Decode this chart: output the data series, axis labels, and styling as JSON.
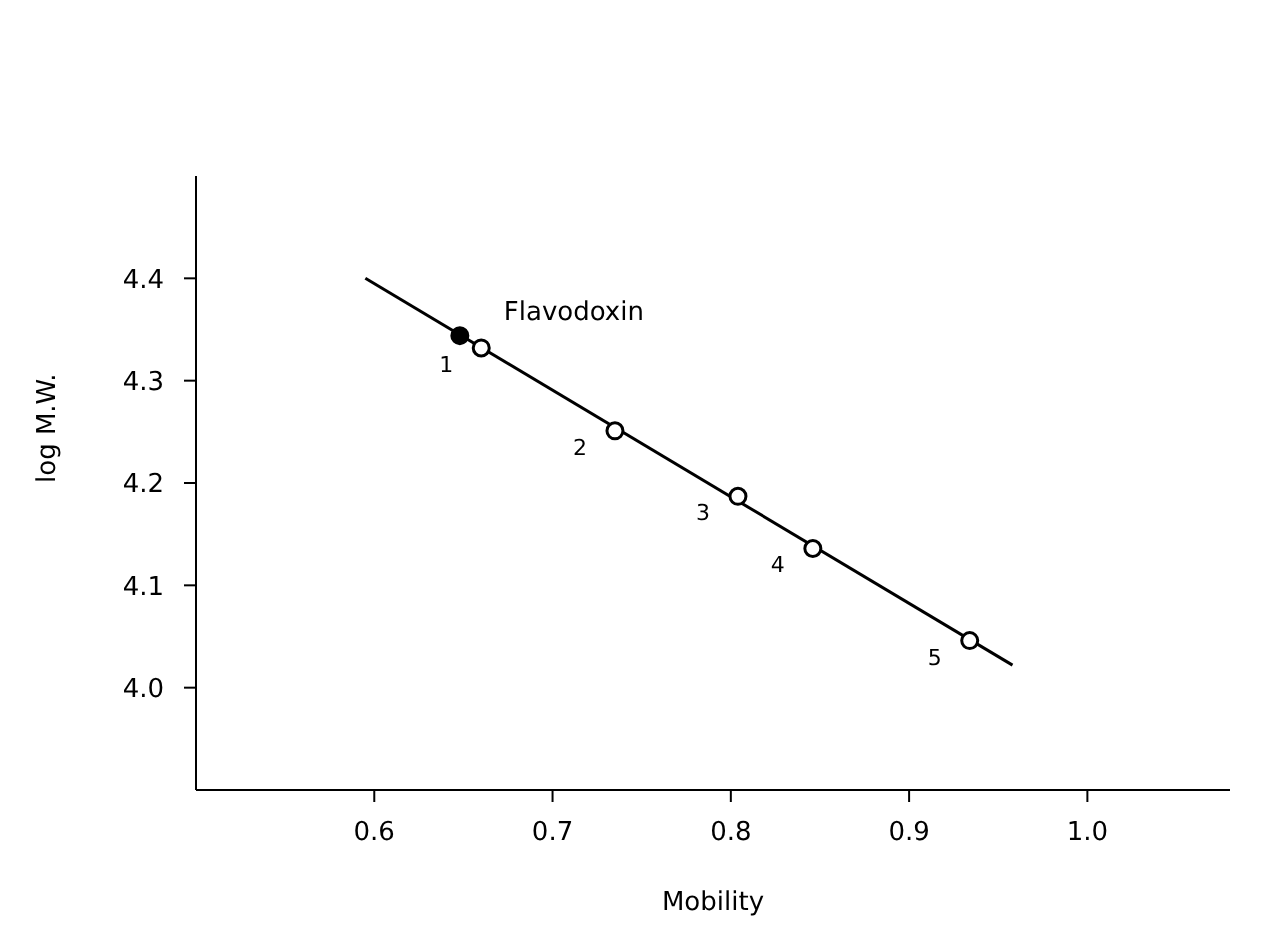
{
  "chart_data": {
    "type": "scatter",
    "xlabel": "Mobility",
    "ylabel": "log M.W.",
    "xlim": [
      0.5,
      1.08
    ],
    "ylim": [
      3.9,
      4.5
    ],
    "xticks": [
      0.6,
      0.7,
      0.8,
      0.9,
      {
        "value": 1,
        "label": "1.0"
      }
    ],
    "yticks": [
      {
        "value": 4,
        "label": "4.0"
      },
      4.1,
      4.2,
      4.3,
      4.4
    ],
    "marker": "circle",
    "grid": false,
    "legend": false,
    "series": [
      {
        "color": "#000000",
        "x": [
          0.648
        ],
        "values": [
          4.344
        ]
      },
      {
        "color": "#000000",
        "x": [
          0.66,
          0.735,
          0.804,
          0.846,
          0.934
        ],
        "values": [
          4.332,
          4.251,
          4.187,
          4.136,
          4.046
        ]
      },
      {
        "type": "line",
        "marker": "none",
        "color": "#000000",
        "x": [
          0.595,
          0.958
        ],
        "values": [
          4.4,
          4.022
        ]
      }
    ],
    "annotations": [
      {
        "text": "Flavodoxin",
        "x": 0.648,
        "y": 4.344
      },
      {
        "text": "1",
        "x": 0.66,
        "y": 4.332
      },
      {
        "text": "2",
        "x": 0.735,
        "y": 4.251
      },
      {
        "text": "3",
        "x": 0.804,
        "y": 4.187
      },
      {
        "text": "4",
        "x": 0.846,
        "y": 4.136
      },
      {
        "text": "5",
        "x": 0.934,
        "y": 4.046
      }
    ]
  }
}
